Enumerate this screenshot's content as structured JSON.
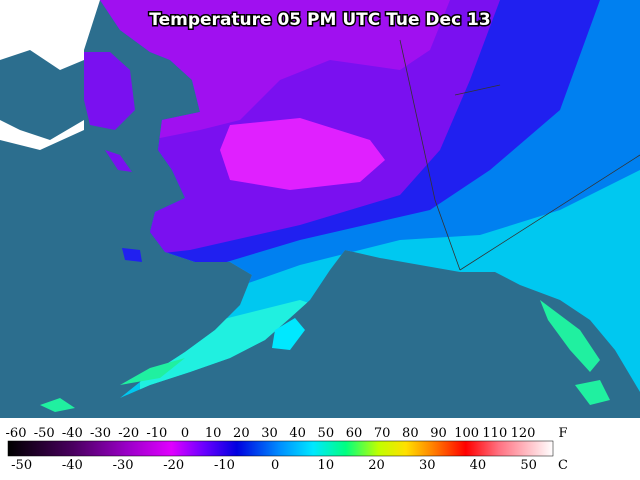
{
  "title": "Temperature 05 PM UTC Tue Dec 13",
  "colorbar": {
    "f_ticks": [
      -60,
      -50,
      -40,
      -30,
      -20,
      -10,
      0,
      10,
      20,
      30,
      40,
      50,
      60,
      70,
      80,
      90,
      100,
      110,
      120
    ],
    "f_unit": "F",
    "c_ticks": [
      -50,
      -40,
      -30,
      -20,
      -10,
      0,
      10,
      20,
      30,
      40,
      50
    ],
    "c_unit": "C"
  }
}
